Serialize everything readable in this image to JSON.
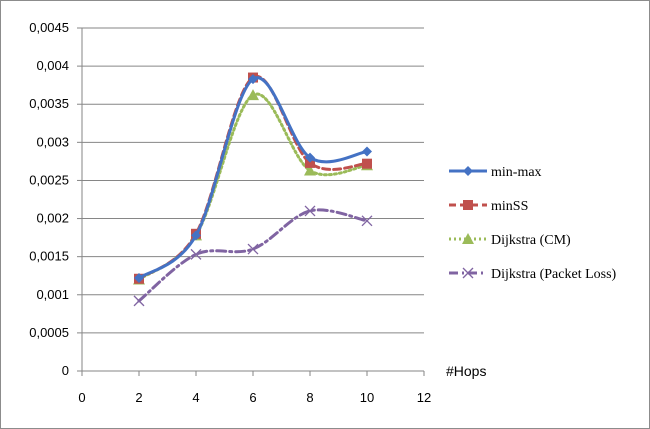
{
  "chart_data": {
    "type": "line",
    "title": "",
    "xlabel": "#Hops",
    "ylabel": "",
    "xlim": [
      0,
      12
    ],
    "ylim": [
      0,
      0.0045
    ],
    "x_ticks": [
      "0",
      "2",
      "4",
      "6",
      "8",
      "10",
      "12"
    ],
    "y_ticks": [
      "0",
      "0,0005",
      "0,001",
      "0,0015",
      "0,002",
      "0,0025",
      "0,003",
      "0,0035",
      "0,004",
      "0,0045"
    ],
    "grid": "horizontal",
    "legend_position": "right",
    "x": [
      2,
      4,
      6,
      8,
      10
    ],
    "series": [
      {
        "name": "min-max",
        "values": [
          0.00122,
          0.00178,
          0.00383,
          0.0028,
          0.00288
        ],
        "color": "#4472c4",
        "marker": "diamond",
        "dash": "solid"
      },
      {
        "name": "minSS",
        "values": [
          0.00121,
          0.0018,
          0.00385,
          0.00273,
          0.00272
        ],
        "color": "#c0504d",
        "marker": "square",
        "dash": "dashed"
      },
      {
        "name": "Dijkstra (CM)",
        "values": [
          0.0012,
          0.00178,
          0.00362,
          0.00263,
          0.0027
        ],
        "color": "#9bbb59",
        "marker": "triangle",
        "dash": "dotted"
      },
      {
        "name": "Dijkstra (Packet Loss)",
        "values": [
          0.00092,
          0.00153,
          0.0016,
          0.0021,
          0.00197
        ],
        "color": "#8064a2",
        "marker": "x",
        "dash": "dashdot"
      }
    ]
  }
}
